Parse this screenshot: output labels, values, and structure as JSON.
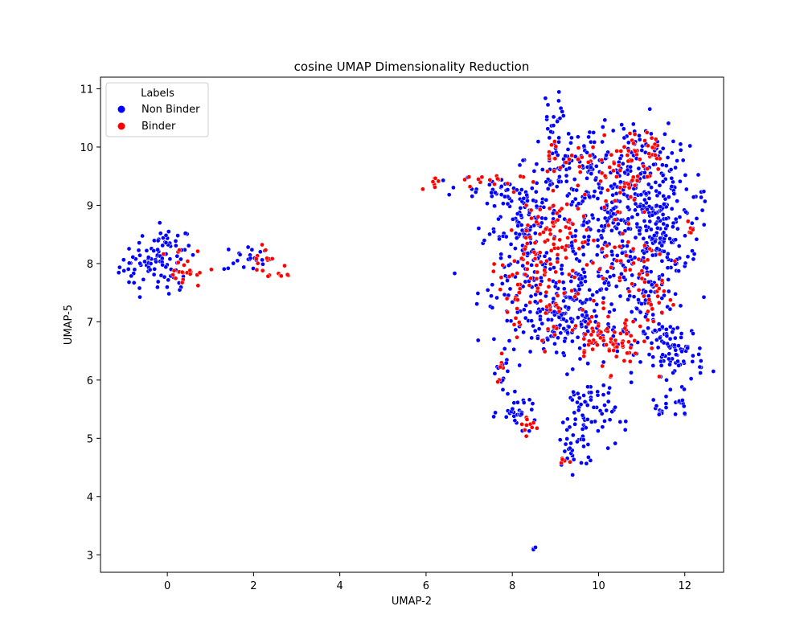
{
  "chart_data": {
    "type": "scatter",
    "title": "cosine UMAP Dimensionality Reduction",
    "xlabel": "UMAP-2",
    "ylabel": "UMAP-5",
    "xlim": [
      -1.55,
      12.9
    ],
    "ylim": [
      2.7,
      11.2
    ],
    "xticks": [
      0,
      2,
      4,
      6,
      8,
      10,
      12
    ],
    "yticks": [
      3,
      4,
      5,
      6,
      7,
      8,
      9,
      10,
      11
    ],
    "grid": false,
    "legend": {
      "title": "Labels",
      "placement": "top-left"
    },
    "series": [
      {
        "name": "Non Binder",
        "color": "#0000ff",
        "clusters": [
          {
            "center": [
              -0.55,
              7.95
            ],
            "spread": [
              0.28,
              0.2
            ],
            "count": 40
          },
          {
            "center": [
              0.0,
              8.25
            ],
            "spread": [
              0.28,
              0.18
            ],
            "count": 45
          },
          {
            "center": [
              0.1,
              7.65
            ],
            "spread": [
              0.18,
              0.15
            ],
            "count": 14
          },
          {
            "center": [
              1.85,
              8.1
            ],
            "spread": [
              0.28,
              0.13
            ],
            "count": 22
          },
          {
            "center": [
              8.2,
              8.9
            ],
            "spread": [
              0.45,
              0.35
            ],
            "count": 80
          },
          {
            "center": [
              8.4,
              7.7
            ],
            "spread": [
              0.6,
              0.55
            ],
            "count": 130
          },
          {
            "center": [
              9.3,
              9.8
            ],
            "spread": [
              0.5,
              0.35
            ],
            "count": 70
          },
          {
            "center": [
              10.3,
              8.6
            ],
            "spread": [
              0.9,
              0.7
            ],
            "count": 320
          },
          {
            "center": [
              10.9,
              9.6
            ],
            "spread": [
              0.45,
              0.45
            ],
            "count": 110
          },
          {
            "center": [
              11.4,
              8.5
            ],
            "spread": [
              0.35,
              0.45
            ],
            "count": 90
          },
          {
            "center": [
              9.5,
              7.2
            ],
            "spread": [
              0.5,
              0.35
            ],
            "count": 90
          },
          {
            "center": [
              11.75,
              6.45
            ],
            "spread": [
              0.35,
              0.28
            ],
            "count": 85
          },
          {
            "center": [
              11.2,
              7.3
            ],
            "spread": [
              0.35,
              0.4
            ],
            "count": 60
          },
          {
            "center": [
              9.75,
              5.4
            ],
            "spread": [
              0.32,
              0.35
            ],
            "count": 70
          },
          {
            "center": [
              9.4,
              4.8
            ],
            "spread": [
              0.22,
              0.18
            ],
            "count": 20
          },
          {
            "center": [
              8.15,
              5.45
            ],
            "spread": [
              0.22,
              0.13
            ],
            "count": 32
          },
          {
            "center": [
              7.8,
              6.1
            ],
            "spread": [
              0.08,
              0.25
            ],
            "count": 12
          },
          {
            "center": [
              11.9,
              5.55
            ],
            "spread": [
              0.1,
              0.1
            ],
            "count": 12
          },
          {
            "center": [
              11.4,
              5.45
            ],
            "spread": [
              0.1,
              0.08
            ],
            "count": 10
          },
          {
            "center": [
              9.2,
              6.9
            ],
            "spread": [
              0.5,
              0.2
            ],
            "count": 55
          },
          {
            "center": [
              12.0,
              8.9
            ],
            "spread": [
              0.2,
              0.4
            ],
            "count": 25
          },
          {
            "center": [
              8.95,
              10.5
            ],
            "spread": [
              0.15,
              0.2
            ],
            "count": 14
          },
          {
            "center": [
              7.6,
              9.3
            ],
            "spread": [
              0.4,
              0.1
            ],
            "count": 20
          },
          {
            "center": [
              8.5,
              3.12
            ],
            "spread": [
              0.02,
              0.02
            ],
            "count": 3
          }
        ]
      },
      {
        "name": "Binder",
        "color": "#ff0000",
        "clusters": [
          {
            "center": [
              0.3,
              7.95
            ],
            "spread": [
              0.22,
              0.18
            ],
            "count": 16
          },
          {
            "center": [
              0.6,
              7.85
            ],
            "spread": [
              0.2,
              0.04
            ],
            "count": 8
          },
          {
            "center": [
              2.3,
              8.05
            ],
            "spread": [
              0.28,
              0.18
            ],
            "count": 14
          },
          {
            "center": [
              2.65,
              7.8
            ],
            "spread": [
              0.12,
              0.02
            ],
            "count": 5
          },
          {
            "center": [
              6.2,
              9.45
            ],
            "spread": [
              0.04,
              0.06
            ],
            "count": 6
          },
          {
            "center": [
              7.2,
              9.4
            ],
            "spread": [
              0.5,
              0.08
            ],
            "count": 16
          },
          {
            "center": [
              8.4,
              8.0
            ],
            "spread": [
              0.35,
              0.45
            ],
            "count": 70
          },
          {
            "center": [
              9.1,
              8.6
            ],
            "spread": [
              0.3,
              0.25
            ],
            "count": 28
          },
          {
            "center": [
              10.2,
              8.3
            ],
            "spread": [
              0.7,
              0.6
            ],
            "count": 60
          },
          {
            "center": [
              10.6,
              9.6
            ],
            "spread": [
              0.3,
              0.3
            ],
            "count": 40
          },
          {
            "center": [
              11.1,
              10.0
            ],
            "spread": [
              0.25,
              0.2
            ],
            "count": 25
          },
          {
            "center": [
              10.0,
              6.75
            ],
            "spread": [
              0.3,
              0.2
            ],
            "count": 40
          },
          {
            "center": [
              10.7,
              6.6
            ],
            "spread": [
              0.25,
              0.25
            ],
            "count": 30
          },
          {
            "center": [
              11.2,
              7.5
            ],
            "spread": [
              0.3,
              0.3
            ],
            "count": 30
          },
          {
            "center": [
              7.75,
              6.2
            ],
            "spread": [
              0.05,
              0.15
            ],
            "count": 8
          },
          {
            "center": [
              8.4,
              5.2
            ],
            "spread": [
              0.12,
              0.1
            ],
            "count": 10
          },
          {
            "center": [
              9.2,
              4.6
            ],
            "spread": [
              0.08,
              0.04
            ],
            "count": 6
          },
          {
            "center": [
              9.3,
              9.9
            ],
            "spread": [
              0.35,
              0.3
            ],
            "count": 25
          },
          {
            "center": [
              12.15,
              8.6
            ],
            "spread": [
              0.08,
              0.1
            ],
            "count": 5
          },
          {
            "center": [
              9.0,
              7.3
            ],
            "spread": [
              0.4,
              0.3
            ],
            "count": 25
          },
          {
            "center": [
              8.1,
              7.2
            ],
            "spread": [
              0.05,
              0.3
            ],
            "count": 8
          }
        ]
      }
    ]
  }
}
